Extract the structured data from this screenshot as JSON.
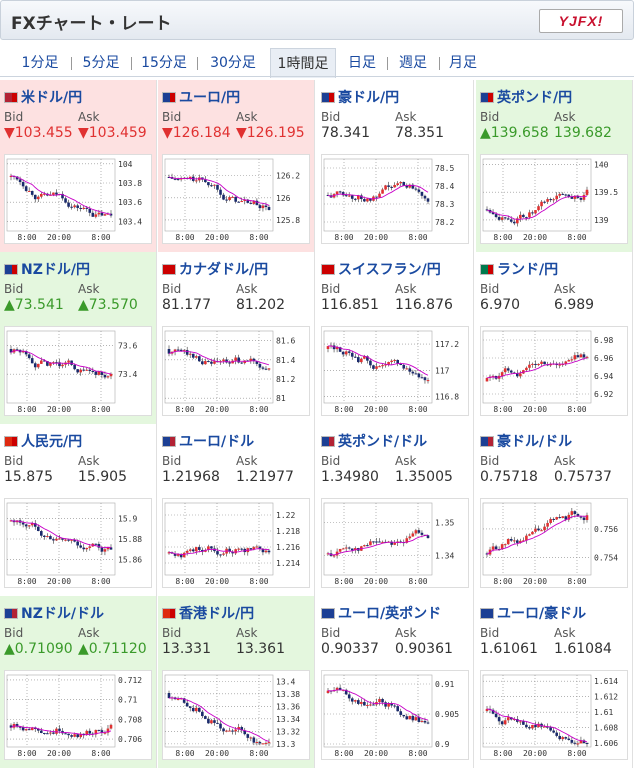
{
  "header": {
    "title": "FXチャート・レート",
    "logo_text": "YJFX!"
  },
  "tabs": [
    {
      "label": "1分足",
      "active": false
    },
    {
      "label": "5分足",
      "active": false
    },
    {
      "label": "15分足",
      "active": false
    },
    {
      "label": "30分足",
      "active": false
    },
    {
      "label": "1時間足",
      "active": true
    },
    {
      "label": "日足",
      "active": false
    },
    {
      "label": "週足",
      "active": false
    },
    {
      "label": "月足",
      "active": false
    }
  ],
  "labels": {
    "bid": "Bid",
    "ask": "Ask"
  },
  "colors": {
    "down": "#e03131",
    "up": "#3a9a2a",
    "link": "#1a4aa0",
    "ma": "#c800c8"
  },
  "pairs": [
    {
      "name": "米ドル/円",
      "bid": "▼103.455",
      "ask": "▼103.459",
      "dir": "down",
      "bg": "red",
      "flags": [
        "#b22234",
        "#c00"
      ],
      "ticks": [
        "104",
        "103.8",
        "103.6",
        "103.4"
      ],
      "xticks": [
        "8:00",
        "20:00",
        "8:00"
      ],
      "ylim": [
        103.3,
        104.05
      ],
      "trend": "down"
    },
    {
      "name": "ユーロ/円",
      "bid": "▼126.184",
      "ask": "▼126.195",
      "dir": "down",
      "bg": "red",
      "flags": [
        "#1c3f94",
        "#c00"
      ],
      "ticks": [
        "126.2",
        "126",
        "125.8"
      ],
      "xticks": [
        "8:00",
        "20:00",
        "8:00"
      ],
      "ylim": [
        125.7,
        126.35
      ],
      "trend": "down"
    },
    {
      "name": "豪ドル/円",
      "bid": "78.341",
      "ask": "78.351",
      "dir": "none",
      "bg": "white",
      "flags": [
        "#1c3f94",
        "#c00"
      ],
      "ticks": [
        "78.5",
        "78.4",
        "78.3",
        "78.2"
      ],
      "xticks": [
        "8:00",
        "20:00",
        "8:00"
      ],
      "ylim": [
        78.15,
        78.55
      ],
      "trend": "flat"
    },
    {
      "name": "英ポンド/円",
      "bid": "▲139.658",
      "ask": "139.682",
      "dir": "up",
      "bg": "green",
      "flags": [
        "#1c3f94",
        "#c00"
      ],
      "ticks": [
        "140",
        "139.5",
        "139"
      ],
      "xticks": [
        "8:00",
        "20:00",
        "8:00"
      ],
      "ylim": [
        138.8,
        140.1
      ],
      "trend": "up"
    },
    {
      "name": "NZドル/円",
      "bid": "▲73.541",
      "ask": "▲73.570",
      "dir": "up",
      "bg": "green",
      "flags": [
        "#1c3f94",
        "#c00"
      ],
      "ticks": [
        "73.6",
        "73.4"
      ],
      "xticks": [
        "8:00",
        "20:00",
        "8:00"
      ],
      "ylim": [
        73.2,
        73.7
      ],
      "trend": "down"
    },
    {
      "name": "カナダドル/円",
      "bid": "81.177",
      "ask": "81.202",
      "dir": "none",
      "bg": "white",
      "flags": [
        "#c00",
        "#c00"
      ],
      "ticks": [
        "81.6",
        "81.4",
        "81.2",
        "81"
      ],
      "xticks": [
        "8:00",
        "20:00",
        "8:00"
      ],
      "ylim": [
        80.95,
        81.7
      ],
      "trend": "down"
    },
    {
      "name": "スイスフラン/円",
      "bid": "116.851",
      "ask": "116.876",
      "dir": "none",
      "bg": "white",
      "flags": [
        "#c00",
        "#c00"
      ],
      "ticks": [
        "117.2",
        "117",
        "116.8"
      ],
      "xticks": [
        "8:00",
        "20:00",
        "8:00"
      ],
      "ylim": [
        116.75,
        117.3
      ],
      "trend": "down"
    },
    {
      "name": "ランド/円",
      "bid": "6.970",
      "ask": "6.989",
      "dir": "none",
      "bg": "white",
      "flags": [
        "#007a4d",
        "#c00"
      ],
      "ticks": [
        "6.98",
        "6.96",
        "6.94",
        "6.92"
      ],
      "xticks": [
        "8:00",
        "20:00",
        "8:00"
      ],
      "ylim": [
        6.91,
        6.99
      ],
      "trend": "up"
    },
    {
      "name": "人民元/円",
      "bid": "15.875",
      "ask": "15.905",
      "dir": "none",
      "bg": "white",
      "flags": [
        "#de2910",
        "#c00"
      ],
      "ticks": [
        "15.9",
        "15.88",
        "15.86"
      ],
      "xticks": [
        "8:00",
        "20:00",
        "8:00"
      ],
      "ylim": [
        15.845,
        15.915
      ],
      "trend": "down"
    },
    {
      "name": "ユーロ/ドル",
      "bid": "1.21968",
      "ask": "1.21977",
      "dir": "none",
      "bg": "white",
      "flags": [
        "#1c3f94",
        "#b22234"
      ],
      "ticks": [
        "1.22",
        "1.218",
        "1.216",
        "1.214"
      ],
      "xticks": [
        "8:00",
        "20:00",
        "8:00"
      ],
      "ylim": [
        1.2125,
        1.2215
      ],
      "trend": "up"
    },
    {
      "name": "英ポンド/ドル",
      "bid": "1.34980",
      "ask": "1.35005",
      "dir": "none",
      "bg": "white",
      "flags": [
        "#1c3f94",
        "#b22234"
      ],
      "ticks": [
        "1.35",
        "1.34"
      ],
      "xticks": [
        "8:00",
        "20:00",
        "8:00"
      ],
      "ylim": [
        1.334,
        1.356
      ],
      "trend": "up"
    },
    {
      "name": "豪ドル/ドル",
      "bid": "0.75718",
      "ask": "0.75737",
      "dir": "none",
      "bg": "white",
      "flags": [
        "#1c3f94",
        "#b22234"
      ],
      "ticks": [
        "0.756",
        "0.754"
      ],
      "xticks": [
        "8:00",
        "20:00",
        "8:00"
      ],
      "ylim": [
        0.7528,
        0.7578
      ],
      "trend": "up"
    },
    {
      "name": "NZドル/ドル",
      "bid": "▲0.71090",
      "ask": "▲0.71120",
      "dir": "up",
      "bg": "green",
      "flags": [
        "#1c3f94",
        "#b22234"
      ],
      "ticks": [
        "0.712",
        "0.71",
        "0.708",
        "0.706"
      ],
      "xticks": [
        "8:00",
        "20:00",
        "8:00"
      ],
      "ylim": [
        0.7052,
        0.7125
      ],
      "trend": "up"
    },
    {
      "name": "香港ドル/円",
      "bid": "13.331",
      "ask": "13.361",
      "dir": "none",
      "bg": "green",
      "flags": [
        "#de2910",
        "#c00"
      ],
      "ticks": [
        "13.4",
        "13.38",
        "13.36",
        "13.34",
        "13.32",
        "13.3"
      ],
      "xticks": [
        "8:00",
        "20:00",
        "8:00"
      ],
      "ylim": [
        13.295,
        13.41
      ],
      "trend": "down"
    },
    {
      "name": "ユーロ/英ポンド",
      "bid": "0.90337",
      "ask": "0.90361",
      "dir": "none",
      "bg": "white",
      "flags": [
        "#1c3f94",
        "#1c3f94"
      ],
      "ticks": [
        "0.91",
        "0.905",
        "0.9"
      ],
      "xticks": [
        "8:00",
        "20:00",
        "8:00"
      ],
      "ylim": [
        0.8995,
        0.9115
      ],
      "trend": "down"
    },
    {
      "name": "ユーロ/豪ドル",
      "bid": "1.61061",
      "ask": "1.61084",
      "dir": "none",
      "bg": "white",
      "flags": [
        "#1c3f94",
        "#1c3f94"
      ],
      "ticks": [
        "1.614",
        "1.612",
        "1.61",
        "1.608",
        "1.606"
      ],
      "xticks": [
        "8:00",
        "20:00",
        "8:00"
      ],
      "ylim": [
        1.6055,
        1.6148
      ],
      "trend": "flat"
    }
  ]
}
